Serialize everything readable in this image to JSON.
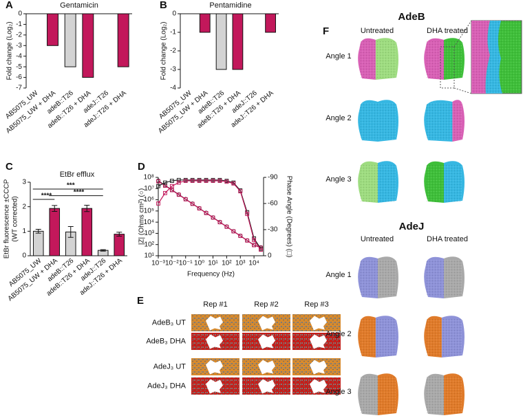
{
  "chart_data": [
    {
      "type": "bar",
      "label": "A",
      "title": "Gentamicin",
      "ylabel": [
        "Fold change (Log₂)"
      ],
      "categories": [
        "AB5075_UW",
        "AB5075_UW + DHA",
        "adeB::T26",
        "adeB::T26 + DHA",
        "adeJ::T26",
        "adeJ::T26 + DHA"
      ],
      "values": [
        0,
        -3,
        -5,
        -6,
        0,
        -5
      ],
      "colors": [
        "#d3d3d3",
        "#c2185b",
        "#d3d3d3",
        "#c2185b",
        "#d3d3d3",
        "#c2185b"
      ],
      "ylim": [
        -7,
        0
      ],
      "yticks": [
        0,
        -1,
        -2,
        -3,
        -4,
        -5,
        -6,
        -7
      ]
    },
    {
      "type": "bar",
      "label": "B",
      "title": "Pentamidine",
      "ylabel": [
        "Fold change (Log₂)"
      ],
      "categories": [
        "AB5075_UW",
        "AB5075_UW + DHA",
        "adeB::T26",
        "adeB::T26 + DHA",
        "adeJ::T26",
        "adeJ::T26 + DHA"
      ],
      "values": [
        0,
        -1,
        -3,
        -3,
        0,
        -1
      ],
      "colors": [
        "#d3d3d3",
        "#c2185b",
        "#d3d3d3",
        "#c2185b",
        "#d3d3d3",
        "#c2185b"
      ],
      "ylim": [
        -4,
        0
      ],
      "yticks": [
        0,
        -1,
        -2,
        -3,
        -4
      ]
    },
    {
      "type": "bar",
      "label": "C",
      "title": "EtBr efflux",
      "ylabel": [
        "EtBr fluorescence ±CCCP",
        "(WT corrected)"
      ],
      "categories": [
        "AB5075_UW",
        "AB5075_UW + DHA",
        "adeB::T26",
        "adeB::T26 + DHA",
        "adeJ::T26",
        "adeJ::T26 + DHA"
      ],
      "values": [
        1.0,
        1.93,
        0.97,
        1.93,
        0.22,
        0.88
      ],
      "errors": [
        0.08,
        0.12,
        0.22,
        0.13,
        0.03,
        0.08
      ],
      "colors": [
        "#d3d3d3",
        "#c2185b",
        "#d3d3d3",
        "#c2185b",
        "#d3d3d3",
        "#c2185b"
      ],
      "annotations": [
        "****",
        "***",
        "****"
      ],
      "ylim": [
        0,
        3
      ],
      "yticks": [
        0,
        1,
        2,
        3
      ]
    },
    {
      "type": "line",
      "label": "D",
      "xlabel": "Frequency (Hz)",
      "ylabel": [
        "|Z| (Ohms cm²) (○)"
      ],
      "y2label": "Phase Angle (Degrees) (□)",
      "xlog": true,
      "ylog": true,
      "x": [
        0.001,
        0.00316,
        0.01,
        0.0316,
        0.1,
        0.316,
        1,
        3.16,
        10,
        31.6,
        100,
        316,
        1000,
        3162,
        10000,
        31623
      ],
      "series": [
        {
          "color": "#222222",
          "marker": "circle",
          "values": [
            50000000,
            19500000,
            7600000,
            2950000,
            1150000,
            447000,
            174000,
            67600,
            26300,
            10200,
            3980,
            1550,
            603,
            234,
            91,
            56
          ]
        },
        {
          "color": "#c2185b",
          "marker": "square",
          "values": [
            45000000,
            18000000,
            7200000,
            2800000,
            1100000,
            430000,
            168000,
            65000,
            25500,
            9900,
            3900,
            1520,
            590,
            228,
            88,
            52
          ]
        },
        {
          "color": "#222222",
          "marker": "square",
          "axis": "y2",
          "values": [
            -80,
            -84,
            -86,
            -87,
            -87,
            -87,
            -87,
            -87,
            -87,
            -87,
            -86,
            -84,
            -75,
            -50,
            -20,
            -8
          ]
        },
        {
          "color": "#c2185b",
          "marker": "square",
          "axis": "y2",
          "values": [
            -60,
            -72,
            -80,
            -84,
            -86,
            -86,
            -86,
            -86,
            -86,
            -86,
            -85,
            -83,
            -74,
            -48,
            -18,
            -7
          ]
        }
      ],
      "xlim": [
        0.001,
        50000
      ],
      "xticks": [
        {
          "value": 0.001,
          "label": "10⁻³"
        },
        {
          "value": 0.01,
          "label": "10⁻²"
        },
        {
          "value": 0.1,
          "label": "10⁻¹"
        },
        {
          "value": 1,
          "label": "10⁰"
        },
        {
          "value": 10,
          "label": "10¹"
        },
        {
          "value": 100,
          "label": "10²"
        },
        {
          "value": 1000,
          "label": "10³"
        },
        {
          "value": 10000,
          "label": "10⁴"
        }
      ],
      "ylim": [
        10,
        100000000
      ],
      "yticks": [
        {
          "value": 10,
          "label": "10¹"
        },
        {
          "value": 100,
          "label": "10²"
        },
        {
          "value": 1000,
          "label": "10³"
        },
        {
          "value": 10000,
          "label": "10⁴"
        },
        {
          "value": 100000,
          "label": "10⁵"
        },
        {
          "value": 1000000,
          "label": "10⁶"
        },
        {
          "value": 10000000,
          "label": "10⁷"
        },
        {
          "value": 100000000,
          "label": "10⁸"
        }
      ],
      "y2lim": [
        0,
        -90
      ],
      "y2ticks": [
        0,
        -30,
        -60,
        -90
      ]
    }
  ],
  "panel_e": {
    "label": "E",
    "columns": [
      "Rep #1",
      "Rep #2",
      "Rep #3"
    ],
    "rows": [
      "AdeB₃ UT",
      "AdeB₃ DHA",
      "AdeJ₃ UT",
      "AdeJ₃ DHA"
    ]
  },
  "panel_f": {
    "label": "F",
    "adeb": {
      "title": "AdeB",
      "columns": [
        "Untreated",
        "DHA treated"
      ],
      "rows": [
        "Angle 1",
        "Angle 2",
        "Angle 3"
      ]
    },
    "adej": {
      "title": "AdeJ",
      "columns": [
        "Untreated",
        "DHA treated"
      ],
      "rows": [
        "Angle 1",
        "Angle 2",
        "Angle 3"
      ]
    }
  }
}
